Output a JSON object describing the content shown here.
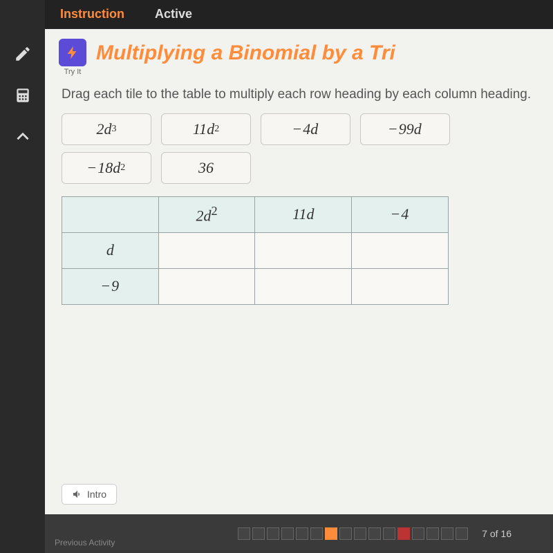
{
  "tabs": {
    "instruction": "Instruction",
    "active": "Active"
  },
  "tryit": {
    "label": "Try It"
  },
  "title": "Multiplying a Binomial by a Tri",
  "instruction": "Drag each tile to the table to multiply each row heading by each column heading.",
  "tiles": [
    {
      "html": "2<i>d</i><sup>3</sup>"
    },
    {
      "html": "11<i>d</i><sup>2</sup>"
    },
    {
      "html": "<span class='neg'>−</span>4<i>d</i>"
    },
    {
      "html": "<span class='neg'>−</span>99<i>d</i>"
    },
    {
      "html": "<span class='neg'>−</span>18<i>d</i><sup>2</sup>"
    },
    {
      "html": "36"
    }
  ],
  "table": {
    "col_headers": [
      {
        "html": "2<i>d</i><sup>2</sup>"
      },
      {
        "html": "11<i>d</i>"
      },
      {
        "html": "<span class='neg'>−</span>4"
      }
    ],
    "row_headers": [
      {
        "html": "<i>d</i>"
      },
      {
        "html": "<span class='neg'>−</span>9"
      }
    ]
  },
  "intro_label": "Intro",
  "footer": {
    "page_text": "7 of 16",
    "total": 16,
    "current": 7,
    "flagged": 12
  },
  "prev": "Previous Activity",
  "colors": {
    "accent": "#ff8c3a",
    "badge": "#5b4bd6",
    "header_cell": "#e3f0ee",
    "bg": "#f2f2ee"
  }
}
